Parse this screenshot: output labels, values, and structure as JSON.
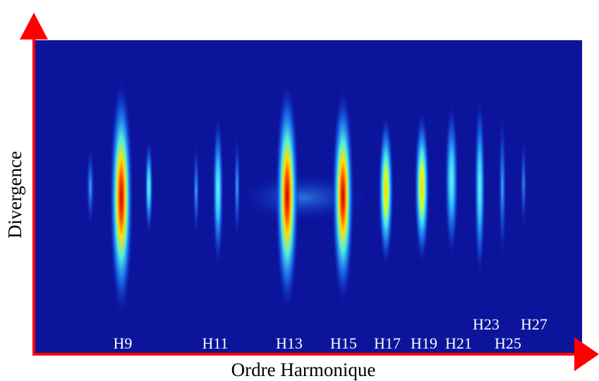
{
  "axes": {
    "y_label": "Divergence",
    "x_label": "Ordre Harmonique"
  },
  "harmonics": [
    "H9",
    "H11",
    "H13",
    "H15",
    "H17",
    "H19",
    "H21",
    "H23",
    "H25",
    "H27"
  ]
}
